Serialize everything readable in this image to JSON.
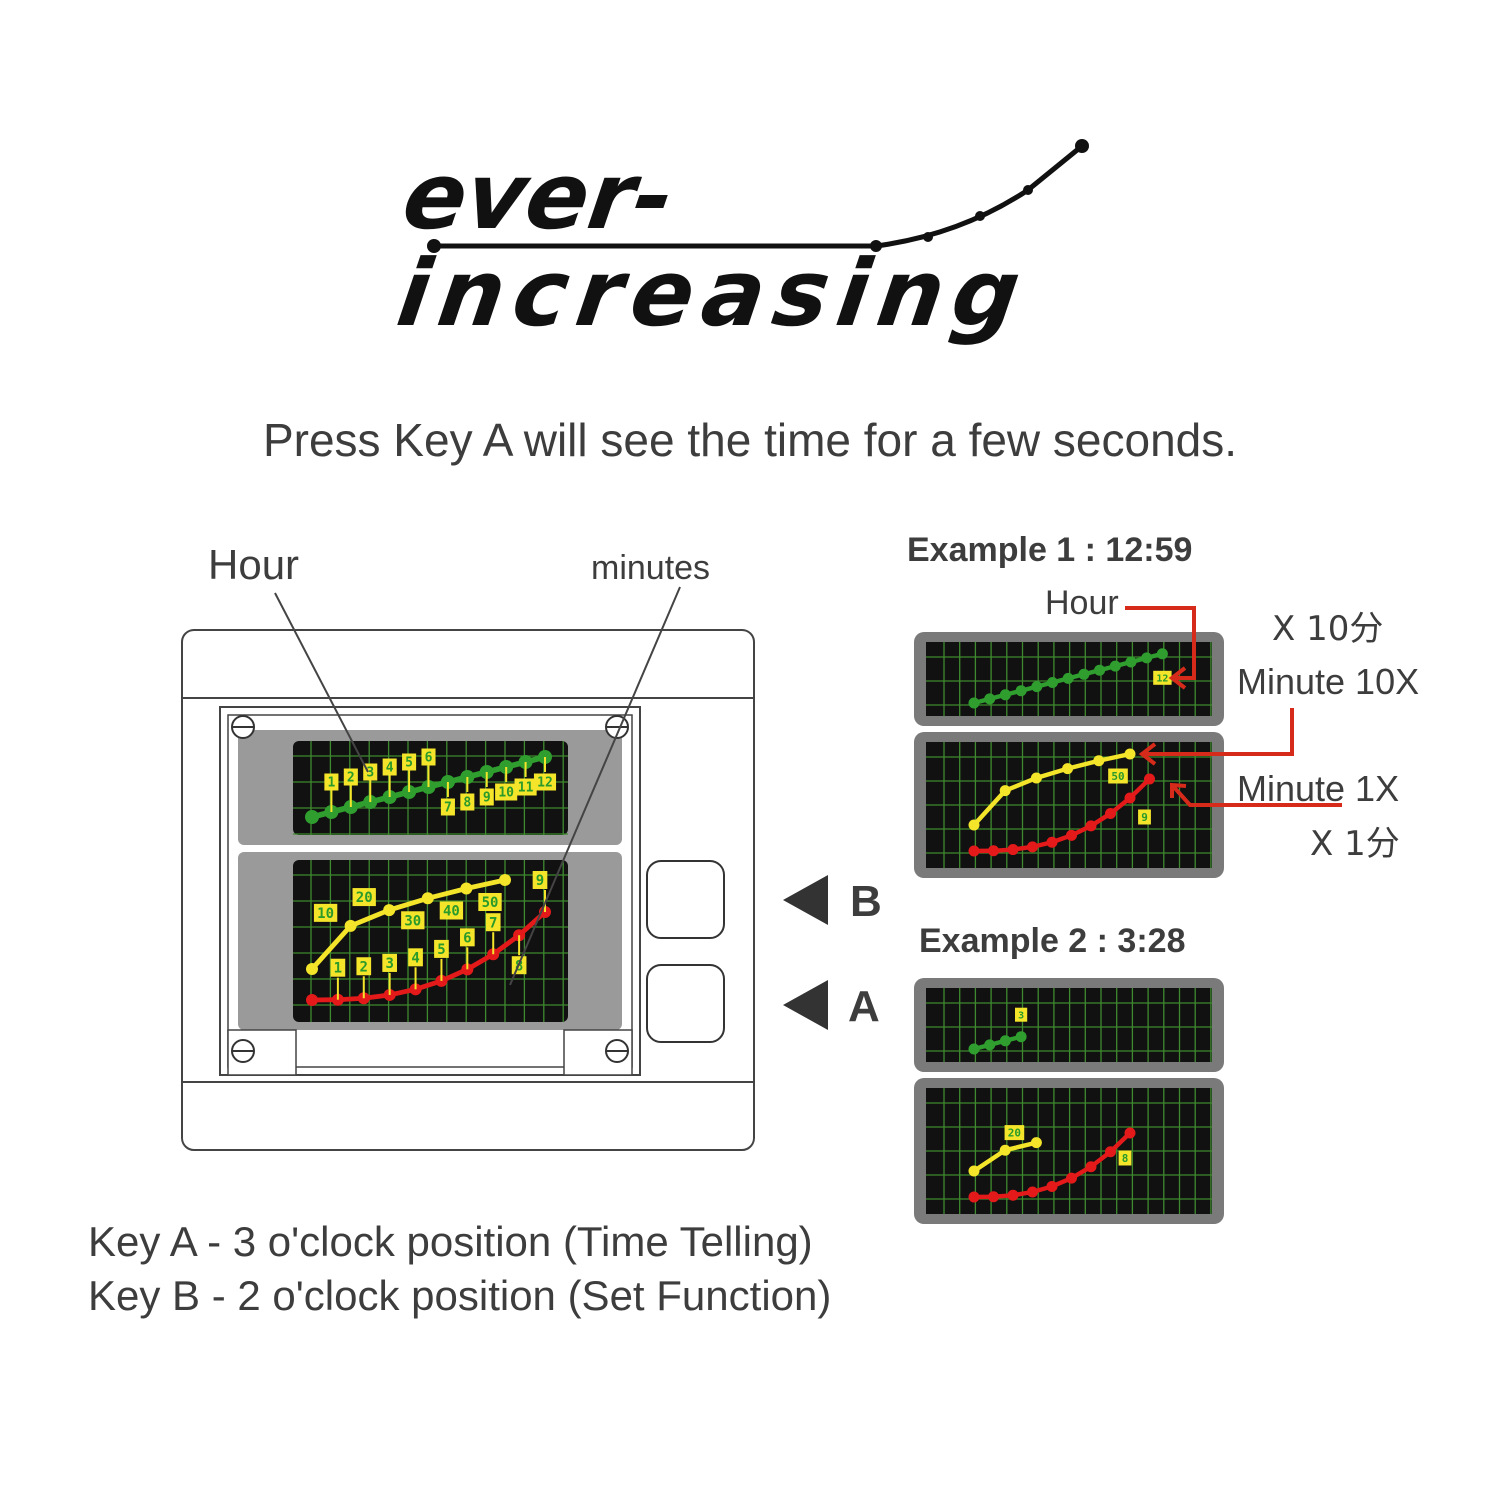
{
  "logo": {
    "line1": "ever-",
    "line2": "increasing"
  },
  "instruction": "Press Key A will see the time for a few seconds.",
  "main_watch": {
    "hour_label": "Hour",
    "minutes_label": "minutes",
    "hour_marks": [
      "1",
      "2",
      "3",
      "4",
      "5",
      "6",
      "7",
      "8",
      "9",
      "10",
      "11",
      "12"
    ],
    "minute_tens_marks": [
      "10",
      "20",
      "30",
      "40",
      "50"
    ],
    "minute_ones_marks": [
      "1",
      "2",
      "3",
      "4",
      "5",
      "6",
      "7",
      "8",
      "9"
    ],
    "key_b_label": "B",
    "key_a_label": "A"
  },
  "example1": {
    "title": "Example 1 :  12:59",
    "hour_label": "Hour",
    "minute_tens_cn": "X  10分",
    "minute_tens_label": "Minute 10X",
    "minute_ones_label": "Minute 1X",
    "minute_ones_cn": "X  1分",
    "hour": 12,
    "minute_tens": 5,
    "minute_ones": 9,
    "hour_tag": "12",
    "tens_tag": "50",
    "ones_tag": "9"
  },
  "example2": {
    "title": "Example 2 :  3:28",
    "hour": 3,
    "minute_tens": 2,
    "minute_ones": 8,
    "hour_tag": "3",
    "tens_tag": "20",
    "ones_tag": "8"
  },
  "keys": {
    "key_a": "Key A -  3  o'clock position (Time Telling)",
    "key_b": "Key B - 2  o'clock position (Set   Function)"
  },
  "colors": {
    "hour": "#2f9e2f",
    "minute_tens": "#f4e52a",
    "minute_ones": "#e41a1a",
    "grid": "#3f8a2f",
    "panel": "#7a7a7a",
    "arrow": "#d62a1a"
  }
}
